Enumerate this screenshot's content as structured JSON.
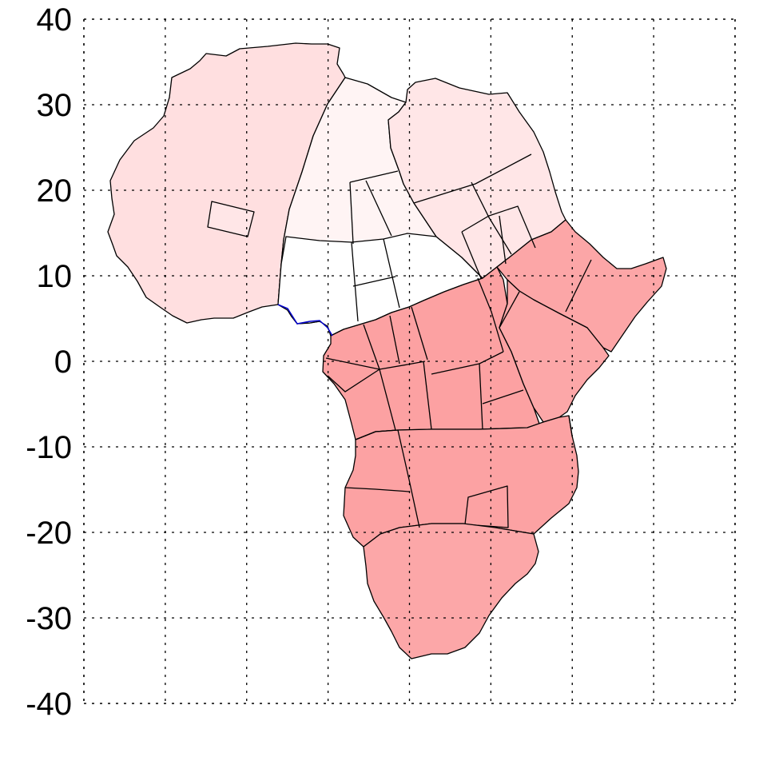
{
  "map": {
    "colors": {
      "north_west": "#ffdfe0",
      "north_central": "#fff4f4",
      "north_east": "#ffe6e7",
      "sahel": "#ffffff",
      "inclusion": "#ffe6e7",
      "equatorial": "#fca1a2",
      "east_horn": "#fca6a7",
      "east_africa": "#fca7a8",
      "southern_central": "#fca2a3",
      "southern": "#fca7a8",
      "outline": "#000000",
      "coast_line": "#0000cc",
      "grid": "#000000"
    }
  },
  "chart_data": {
    "type": "map",
    "title": "",
    "xlabel": "",
    "ylabel": "",
    "ylim": [
      -40,
      40
    ],
    "y_ticks": [
      "40",
      "30",
      "20",
      "10",
      "0",
      "-10",
      "-20",
      "-30",
      "-40"
    ],
    "x_grid_count": 8,
    "grid": true,
    "regions": [
      {
        "name": "north-west",
        "shade": "light pink"
      },
      {
        "name": "north-central",
        "shade": "very light pink"
      },
      {
        "name": "north-east",
        "shade": "light pink"
      },
      {
        "name": "sahel",
        "shade": "white"
      },
      {
        "name": "equatorial",
        "shade": "salmon"
      },
      {
        "name": "east-horn",
        "shade": "salmon"
      },
      {
        "name": "east-africa",
        "shade": "salmon"
      },
      {
        "name": "southern-central",
        "shade": "salmon"
      },
      {
        "name": "southern",
        "shade": "salmon"
      }
    ]
  }
}
